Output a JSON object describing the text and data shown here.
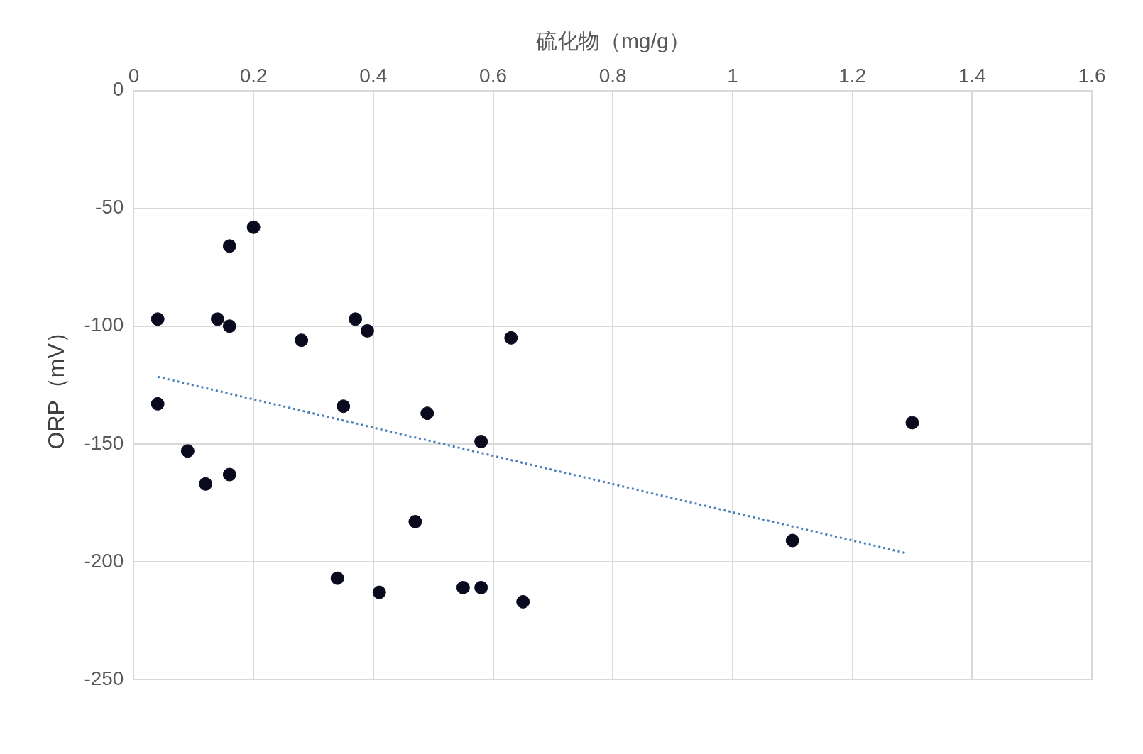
{
  "chart_data": {
    "type": "scatter",
    "xlabel": "硫化物（mg/g）",
    "ylabel": "ORP（mV）",
    "xlim": [
      0,
      1.6
    ],
    "xticks": [
      0,
      0.2,
      0.4,
      0.6,
      0.8,
      1,
      1.2,
      1.4,
      1.6
    ],
    "ylim": [
      -250,
      0
    ],
    "yticks": [
      -250,
      -200,
      -150,
      -100,
      -50,
      0
    ],
    "grid": true,
    "legend": false,
    "marker": "circle",
    "series": [
      {
        "color": "#0a0a1e",
        "x": [
          0.04,
          0.04,
          0.09,
          0.12,
          0.14,
          0.16,
          0.16,
          0.16,
          0.2,
          0.28,
          0.34,
          0.35,
          0.37,
          0.39,
          0.41,
          0.47,
          0.49,
          0.55,
          0.58,
          0.58,
          0.63,
          0.65,
          1.1,
          1.3
        ],
        "values": [
          -97,
          -133,
          -153,
          -167,
          -97,
          -66,
          -100,
          -163,
          -58,
          -106,
          -207,
          -134,
          -97,
          -102,
          -213,
          -183,
          -137,
          -211,
          -149,
          -211,
          -105,
          -217,
          -191,
          -141
        ]
      },
      {
        "type": "line",
        "color": "#4a7ebb",
        "line_style": "dotted",
        "marker": "none",
        "x": [
          0.04,
          1.29
        ],
        "values": [
          -121.5,
          -196.4
        ]
      }
    ]
  }
}
